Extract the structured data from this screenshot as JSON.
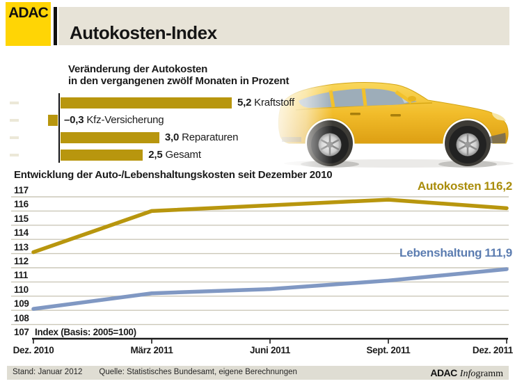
{
  "header": {
    "logo_text": "ADAC",
    "title": "Autokosten-Index"
  },
  "bar_chart": {
    "title_line1": "Veränderung der Autokosten",
    "title_line2": "in den vergangenen zwölf Monaten in Prozent"
  },
  "line_chart": {
    "title": "Entwicklung der Auto-/Lebenshaltungskosten seit Dezember 2010",
    "index_note": "Index (Basis: 2005=100)",
    "series_label_autokosten_name": "Autokosten",
    "series_label_autokosten_value": "116,2",
    "series_label_lebenshaltung_name": "Lebenshaltung",
    "series_label_lebenshaltung_value": "111,9"
  },
  "footer": {
    "stand": "Stand: Januar 2012",
    "quelle": "Quelle: Statistisches Bundesamt, eigene Berechnungen",
    "brand_bold": "ADAC",
    "brand_italic": "Info",
    "brand_regular": "gramm"
  },
  "colors": {
    "gold": "#b8960e",
    "gold_label": "#a98c0a",
    "blue": "#8098c3",
    "blue_label": "#5b7cb0",
    "grid": "#cbc7b8",
    "black": "#1b1b1b",
    "adac_yellow": "#ffd505",
    "beige_header": "#e7e3d7",
    "beige_footer": "#dfddd3"
  },
  "chart_data": [
    {
      "type": "bar",
      "orientation": "horizontal",
      "title": "Veränderung der Autokosten in den vergangenen zwölf Monaten in Prozent",
      "categories": [
        "Kraftstoff",
        "Kfz-Versicherung",
        "Reparaturen",
        "Gesamt"
      ],
      "values": [
        5.2,
        -0.3,
        3.0,
        2.5
      ],
      "value_labels": [
        "5,2",
        "–0,3",
        "3,0",
        "2,5"
      ],
      "unit": "percent",
      "bar_color": "#b8960e"
    },
    {
      "type": "line",
      "title": "Entwicklung der Auto-/Lebenshaltungskosten seit Dezember 2010",
      "x": [
        "Dez. 2010",
        "März 2011",
        "Juni 2011",
        "Sept. 2011",
        "Dez. 2011"
      ],
      "series": [
        {
          "name": "Autokosten",
          "values": [
            113.1,
            116.0,
            116.4,
            116.8,
            116.2
          ],
          "color": "#b8960e",
          "end_label": "Autokosten 116,2"
        },
        {
          "name": "Lebenshaltung",
          "values": [
            109.1,
            110.2,
            110.5,
            111.1,
            111.9
          ],
          "color": "#8098c3",
          "end_label": "Lebenshaltung 111,9"
        }
      ],
      "ylim": [
        107,
        117
      ],
      "yticks": [
        117,
        116,
        115,
        114,
        113,
        112,
        111,
        110,
        109,
        108,
        107
      ],
      "grid": true,
      "note": "Index (Basis: 2005=100)",
      "legend_position": "inline-right"
    }
  ]
}
